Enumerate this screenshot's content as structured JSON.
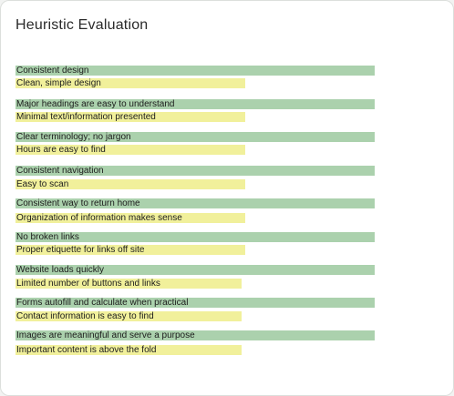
{
  "title": "Heuristic Evaluation",
  "colors": {
    "green": "#abd1ad",
    "yellow": "#f1f09b"
  },
  "chart_data": {
    "type": "bar",
    "orientation": "horizontal",
    "values_scale": "relative length (longest = 1.0)",
    "items": [
      {
        "label": "Consistent design",
        "value": 1.0,
        "color": "green"
      },
      {
        "label": "Clean, simple design",
        "value": 0.64,
        "color": "yellow"
      },
      {
        "label": "Major headings are easy to understand",
        "value": 1.0,
        "color": "green"
      },
      {
        "label": "Minimal text/information presented",
        "value": 0.64,
        "color": "yellow"
      },
      {
        "label": "Clear terminology; no jargon",
        "value": 1.0,
        "color": "green"
      },
      {
        "label": "Hours are easy to find",
        "value": 0.64,
        "color": "yellow"
      },
      {
        "label": "Consistent navigation",
        "value": 1.0,
        "color": "green"
      },
      {
        "label": "Easy to scan",
        "value": 0.64,
        "color": "yellow"
      },
      {
        "label": "Consistent way to return home",
        "value": 1.0,
        "color": "green"
      },
      {
        "label": "Organization of information makes sense",
        "value": 0.64,
        "color": "yellow"
      },
      {
        "label": "No broken links",
        "value": 1.0,
        "color": "green"
      },
      {
        "label": "Proper etiquette for links off site",
        "value": 0.64,
        "color": "yellow"
      },
      {
        "label": "Website loads quickly",
        "value": 1.0,
        "color": "green"
      },
      {
        "label": "Limited number of buttons and links",
        "value": 0.63,
        "color": "yellow"
      },
      {
        "label": "Forms autofill and calculate when practical",
        "value": 1.0,
        "color": "green"
      },
      {
        "label": "Contact information is easy to find",
        "value": 0.63,
        "color": "yellow"
      },
      {
        "label": "Images are meaningful and serve a purpose",
        "value": 1.0,
        "color": "green"
      },
      {
        "label": "Important content is above the fold",
        "value": 0.63,
        "color": "yellow"
      }
    ]
  }
}
